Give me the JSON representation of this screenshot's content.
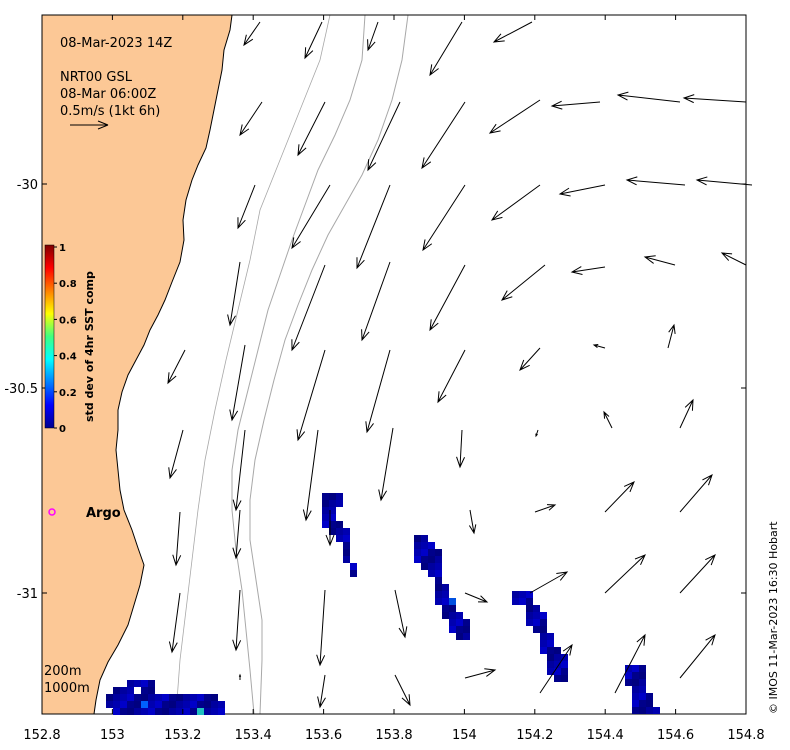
{
  "header": {
    "datetime": "08-Mar-2023 14Z",
    "product": "NRT00 GSL",
    "current_time": "08-Mar 06:00Z",
    "scale_label": "0.5m/s (1kt 6h)"
  },
  "legend": {
    "contour_200": "200m",
    "contour_1000": "1000m"
  },
  "argo": {
    "label": "Argo",
    "marker_color": "#ff00ff"
  },
  "colorbar": {
    "title": "std dev of 4hr SST comp",
    "ticks": [
      "1",
      "0.8",
      "0.6",
      "0.4",
      "0.2",
      "0"
    ]
  },
  "axes": {
    "x_ticks": [
      "152.8",
      "153",
      "153.2",
      "153.4",
      "153.6",
      "153.8",
      "154",
      "154.2",
      "154.4",
      "154.6",
      "154.8"
    ],
    "y_ticks": [
      "-30",
      "-30.5",
      "-31"
    ],
    "xlim": [
      152.8,
      154.8
    ],
    "ylim": [
      -31.3,
      -29.58
    ]
  },
  "credit": "© IMOS 11-Mar-2023 16:30 Hobart",
  "colors": {
    "land": "#fcc896",
    "sst_low": "#00008b",
    "contour": "#a8a8a8"
  }
}
